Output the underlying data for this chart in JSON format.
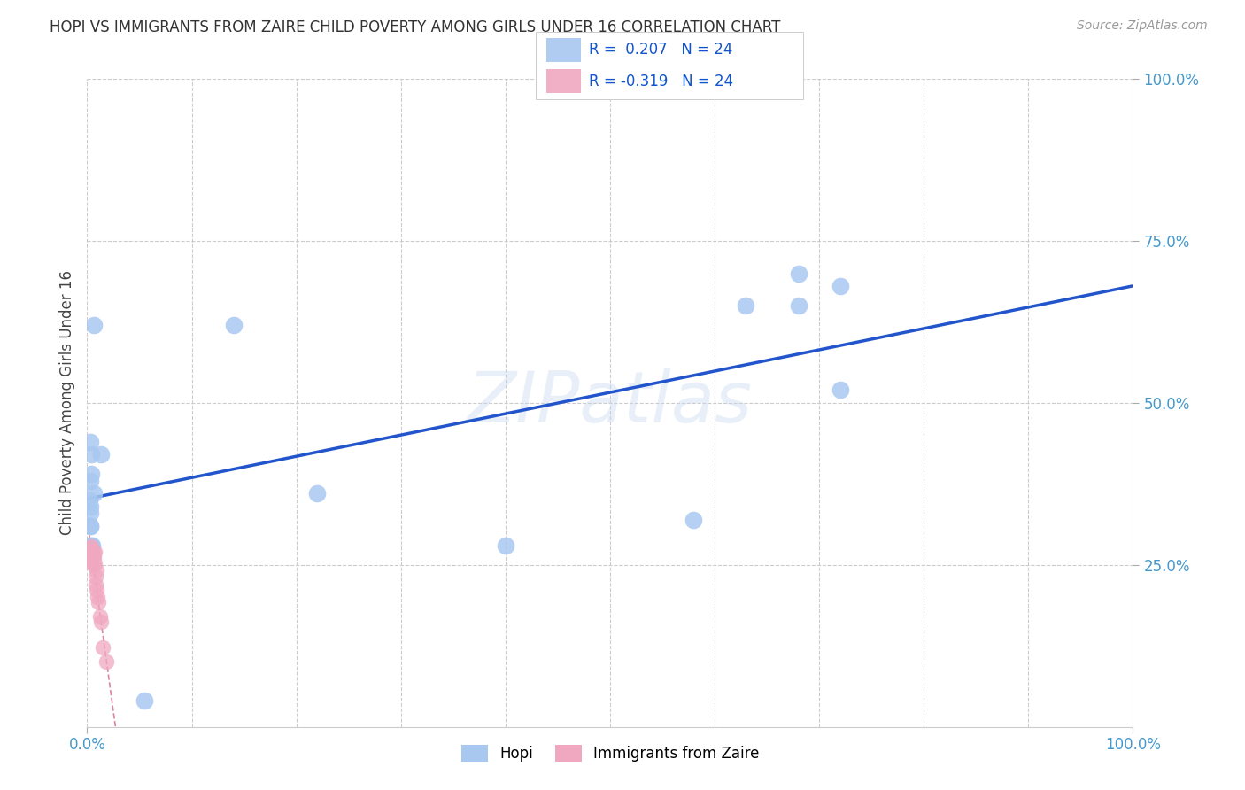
{
  "title": "HOPI VS IMMIGRANTS FROM ZAIRE CHILD POVERTY AMONG GIRLS UNDER 16 CORRELATION CHART",
  "source": "Source: ZipAtlas.com",
  "ylabel": "Child Poverty Among Girls Under 16",
  "hopi_R": 0.207,
  "hopi_N": 24,
  "zaire_R": -0.319,
  "zaire_N": 24,
  "xlim": [
    0,
    1.0
  ],
  "ylim": [
    0,
    1.0
  ],
  "hopi_x": [
    0.004,
    0.013,
    0.003,
    0.006,
    0.002,
    0.003,
    0.003,
    0.003,
    0.003,
    0.004,
    0.005,
    0.006,
    0.004,
    0.003,
    0.14,
    0.22,
    0.4,
    0.58,
    0.63,
    0.68,
    0.68,
    0.72,
    0.72,
    0.055
  ],
  "hopi_y": [
    0.42,
    0.42,
    0.38,
    0.36,
    0.35,
    0.34,
    0.33,
    0.31,
    0.31,
    0.28,
    0.28,
    0.62,
    0.39,
    0.44,
    0.62,
    0.36,
    0.28,
    0.32,
    0.65,
    0.7,
    0.65,
    0.52,
    0.68,
    0.04
  ],
  "zaire_x": [
    0.002,
    0.003,
    0.003,
    0.004,
    0.004,
    0.004,
    0.005,
    0.005,
    0.005,
    0.006,
    0.006,
    0.006,
    0.007,
    0.007,
    0.008,
    0.008,
    0.009,
    0.009,
    0.01,
    0.011,
    0.012,
    0.013,
    0.015,
    0.018
  ],
  "zaire_y": [
    0.265,
    0.27,
    0.275,
    0.26,
    0.268,
    0.278,
    0.252,
    0.262,
    0.272,
    0.25,
    0.26,
    0.268,
    0.252,
    0.27,
    0.232,
    0.22,
    0.212,
    0.242,
    0.2,
    0.192,
    0.17,
    0.162,
    0.122,
    0.1
  ],
  "hopi_color": "#a8c8f0",
  "zaire_color": "#f0a8c0",
  "hopi_line_color": "#2255cc",
  "zaire_line_color": "#cc4466",
  "background_color": "#ffffff",
  "grid_color": "#cccccc",
  "watermark_text": "ZIPatlas",
  "legend_hopi": "R =  0.207   N = 24",
  "legend_zaire": "R = -0.319   N = 24",
  "bottom_legend_hopi": "Hopi",
  "bottom_legend_zaire": "Immigrants from Zaire"
}
